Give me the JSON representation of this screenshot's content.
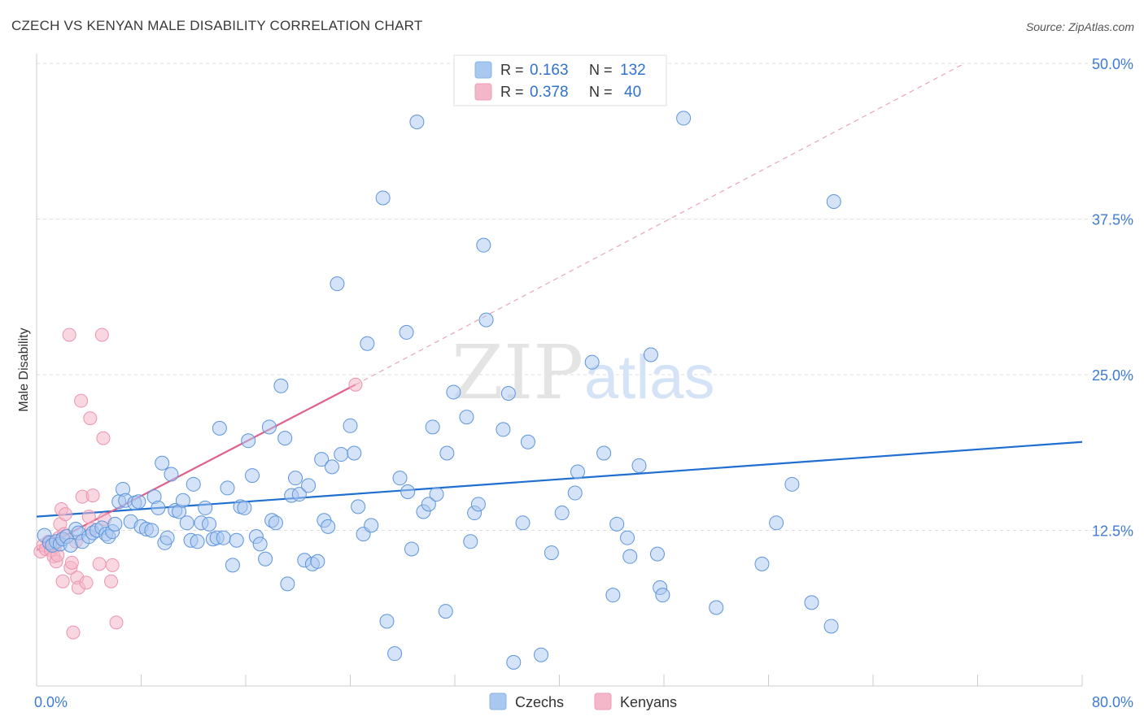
{
  "header": {
    "title": "CZECH VS KENYAN MALE DISABILITY CORRELATION CHART",
    "source": "Source: ZipAtlas.com"
  },
  "watermark": {
    "zip": "ZIP",
    "atlas": "atlas"
  },
  "legend_top": {
    "rows": [
      {
        "r_label": "R =",
        "r_value": "0.163",
        "n_label": "N =",
        "n_value": "132",
        "color": "#a9c8f0"
      },
      {
        "r_label": "R =",
        "r_value": "0.378",
        "n_label": "N =",
        "n_value": "40",
        "color": "#f4b6c9"
      }
    ]
  },
  "legend_bottom": {
    "items": [
      {
        "label": "Czechs",
        "color": "#a9c8f0"
      },
      {
        "label": "Kenyans",
        "color": "#f4b6c9"
      }
    ]
  },
  "chart_data": {
    "type": "scatter",
    "title": "CZECH VS KENYAN MALE DISABILITY CORRELATION CHART",
    "xlabel": "",
    "ylabel": "Male Disability",
    "xlim": [
      0,
      80
    ],
    "ylim": [
      0,
      50
    ],
    "x_tick_labels": [
      "0.0%",
      "80.0%"
    ],
    "y_ticks": [
      12.5,
      25.0,
      37.5,
      50.0
    ],
    "y_tick_labels": [
      "12.5%",
      "25.0%",
      "37.5%",
      "50.0%"
    ],
    "grid": true,
    "legend": "top-center",
    "colors": {
      "czechs": "#1f6fd1",
      "czechs_fill": "#a9c8f0",
      "kenyans": "#e0608c",
      "kenyans_fill": "#f4b6c9"
    },
    "series": [
      {
        "name": "Czechs",
        "trend": {
          "x": [
            0,
            80
          ],
          "y": [
            13.6,
            19.6
          ]
        },
        "points": [
          [
            0.6,
            12.1
          ],
          [
            1.0,
            11.5
          ],
          [
            1.2,
            11.3
          ],
          [
            1.5,
            11.6
          ],
          [
            1.8,
            11.4
          ],
          [
            2.0,
            11.8
          ],
          [
            2.3,
            12.0
          ],
          [
            2.6,
            11.3
          ],
          [
            3.0,
            12.6
          ],
          [
            3.2,
            12.3
          ],
          [
            3.5,
            11.6
          ],
          [
            4.0,
            12.0
          ],
          [
            4.3,
            12.3
          ],
          [
            4.6,
            12.5
          ],
          [
            5.0,
            12.7
          ],
          [
            5.3,
            12.2
          ],
          [
            5.5,
            12.0
          ],
          [
            5.8,
            12.4
          ],
          [
            6.0,
            13.0
          ],
          [
            6.3,
            14.8
          ],
          [
            6.6,
            15.8
          ],
          [
            6.8,
            14.9
          ],
          [
            7.2,
            13.2
          ],
          [
            7.5,
            14.7
          ],
          [
            7.8,
            14.8
          ],
          [
            8.0,
            12.8
          ],
          [
            8.4,
            12.6
          ],
          [
            8.8,
            12.5
          ],
          [
            9.0,
            15.2
          ],
          [
            9.3,
            14.3
          ],
          [
            9.6,
            17.9
          ],
          [
            9.8,
            11.5
          ],
          [
            10.0,
            11.9
          ],
          [
            10.3,
            17.0
          ],
          [
            10.6,
            14.1
          ],
          [
            10.9,
            14.0
          ],
          [
            11.2,
            14.9
          ],
          [
            11.5,
            13.1
          ],
          [
            11.8,
            11.7
          ],
          [
            12.0,
            16.2
          ],
          [
            12.3,
            11.6
          ],
          [
            12.6,
            13.1
          ],
          [
            12.9,
            14.3
          ],
          [
            13.2,
            13.0
          ],
          [
            13.5,
            11.8
          ],
          [
            13.8,
            11.9
          ],
          [
            14.0,
            20.7
          ],
          [
            14.3,
            11.9
          ],
          [
            14.6,
            15.9
          ],
          [
            15.0,
            9.7
          ],
          [
            15.3,
            11.7
          ],
          [
            15.6,
            14.4
          ],
          [
            15.9,
            14.3
          ],
          [
            16.2,
            19.7
          ],
          [
            16.5,
            16.9
          ],
          [
            16.8,
            12.0
          ],
          [
            17.1,
            11.4
          ],
          [
            17.5,
            10.2
          ],
          [
            17.8,
            20.8
          ],
          [
            18.0,
            13.3
          ],
          [
            18.3,
            13.1
          ],
          [
            18.7,
            24.1
          ],
          [
            19.0,
            19.9
          ],
          [
            19.2,
            8.2
          ],
          [
            19.5,
            15.3
          ],
          [
            19.8,
            16.7
          ],
          [
            20.1,
            15.4
          ],
          [
            20.5,
            10.1
          ],
          [
            20.8,
            16.1
          ],
          [
            21.1,
            9.8
          ],
          [
            21.5,
            10.0
          ],
          [
            21.8,
            18.2
          ],
          [
            22.0,
            13.3
          ],
          [
            22.3,
            12.8
          ],
          [
            22.6,
            17.6
          ],
          [
            23.0,
            32.3
          ],
          [
            23.3,
            18.6
          ],
          [
            24.0,
            20.9
          ],
          [
            24.3,
            18.7
          ],
          [
            24.6,
            14.4
          ],
          [
            25.0,
            12.2
          ],
          [
            25.3,
            27.5
          ],
          [
            25.6,
            12.9
          ],
          [
            26.5,
            39.2
          ],
          [
            26.8,
            5.2
          ],
          [
            27.4,
            2.6
          ],
          [
            27.8,
            16.7
          ],
          [
            28.3,
            28.4
          ],
          [
            28.4,
            15.6
          ],
          [
            28.7,
            11.0
          ],
          [
            29.1,
            45.3
          ],
          [
            29.6,
            14.0
          ],
          [
            30.0,
            14.6
          ],
          [
            30.3,
            20.8
          ],
          [
            30.6,
            15.4
          ],
          [
            31.3,
            6.0
          ],
          [
            31.4,
            18.7
          ],
          [
            31.9,
            23.6
          ],
          [
            32.9,
            21.6
          ],
          [
            33.2,
            11.6
          ],
          [
            33.5,
            13.9
          ],
          [
            33.8,
            14.6
          ],
          [
            34.2,
            35.4
          ],
          [
            34.4,
            29.4
          ],
          [
            35.7,
            20.6
          ],
          [
            36.1,
            23.5
          ],
          [
            36.5,
            1.9
          ],
          [
            37.2,
            13.1
          ],
          [
            37.6,
            19.6
          ],
          [
            38.6,
            2.5
          ],
          [
            39.4,
            10.7
          ],
          [
            40.2,
            13.9
          ],
          [
            41.2,
            15.5
          ],
          [
            41.4,
            17.2
          ],
          [
            42.5,
            26.0
          ],
          [
            43.4,
            18.7
          ],
          [
            44.1,
            7.3
          ],
          [
            44.4,
            13.0
          ],
          [
            45.2,
            11.9
          ],
          [
            45.4,
            10.4
          ],
          [
            46.1,
            17.7
          ],
          [
            47.0,
            26.6
          ],
          [
            47.5,
            10.6
          ],
          [
            47.7,
            7.9
          ],
          [
            47.9,
            7.3
          ],
          [
            49.5,
            45.6
          ],
          [
            52.0,
            6.3
          ],
          [
            55.5,
            9.8
          ],
          [
            56.6,
            13.1
          ],
          [
            57.8,
            16.2
          ],
          [
            59.3,
            6.7
          ],
          [
            60.8,
            4.8
          ],
          [
            61.0,
            38.9
          ]
        ]
      },
      {
        "name": "Kenyans",
        "trend": {
          "x": [
            0,
            24.4
          ],
          "y": [
            10.9,
            24.2
          ]
        },
        "trend_extension": {
          "x": [
            24.4,
            71.0
          ],
          "y": [
            24.2,
            50.0
          ]
        },
        "points": [
          [
            0.3,
            10.8
          ],
          [
            0.5,
            11.3
          ],
          [
            0.7,
            11.0
          ],
          [
            0.9,
            11.6
          ],
          [
            1.1,
            10.9
          ],
          [
            1.2,
            11.5
          ],
          [
            1.3,
            10.4
          ],
          [
            1.4,
            11.2
          ],
          [
            1.5,
            10.0
          ],
          [
            1.6,
            10.5
          ],
          [
            1.7,
            11.9
          ],
          [
            1.8,
            13.0
          ],
          [
            1.9,
            14.2
          ],
          [
            2.0,
            8.4
          ],
          [
            2.1,
            12.2
          ],
          [
            2.2,
            13.8
          ],
          [
            2.5,
            28.2
          ],
          [
            2.6,
            9.5
          ],
          [
            2.7,
            9.9
          ],
          [
            2.8,
            4.3
          ],
          [
            3.0,
            11.6
          ],
          [
            3.1,
            8.7
          ],
          [
            3.2,
            7.9
          ],
          [
            3.4,
            22.9
          ],
          [
            3.5,
            15.2
          ],
          [
            3.8,
            8.3
          ],
          [
            4.0,
            13.6
          ],
          [
            4.1,
            21.5
          ],
          [
            4.2,
            12.6
          ],
          [
            4.3,
            15.3
          ],
          [
            4.8,
            9.8
          ],
          [
            5.0,
            28.2
          ],
          [
            5.1,
            19.9
          ],
          [
            5.2,
            13.4
          ],
          [
            5.7,
            8.4
          ],
          [
            5.8,
            9.7
          ],
          [
            6.1,
            5.1
          ],
          [
            24.4,
            24.2
          ]
        ]
      }
    ]
  }
}
